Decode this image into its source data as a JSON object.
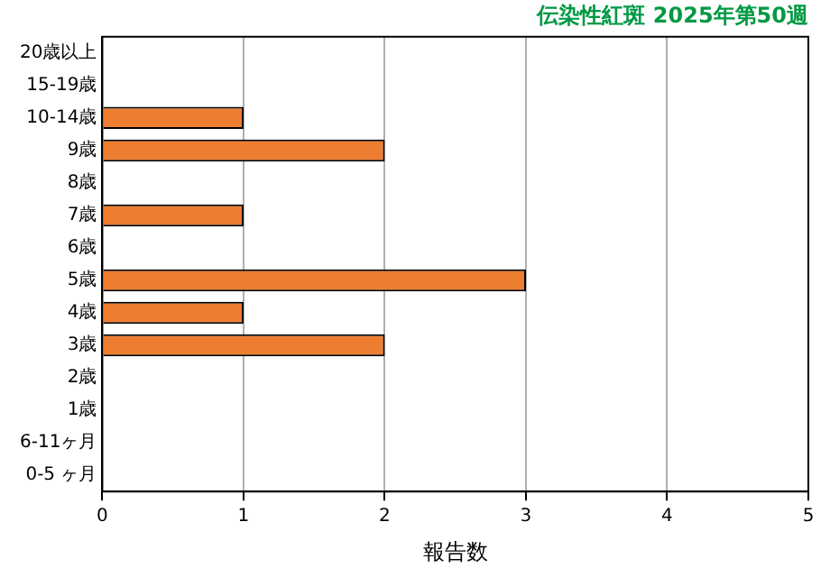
{
  "chart_data": {
    "type": "bar",
    "orientation": "horizontal",
    "title": "伝染性紅斑 2025年第50週",
    "xlabel": "報告数",
    "categories": [
      "20歳以上",
      "15-19歳",
      "10-14歳",
      "9歳",
      "8歳",
      "7歳",
      "6歳",
      "5歳",
      "4歳",
      "3歳",
      "2歳",
      "1歳",
      "6-11ヶ月",
      "0-5 ヶ月"
    ],
    "values": [
      0,
      0,
      1,
      2,
      0,
      1,
      0,
      3,
      1,
      2,
      0,
      0,
      0,
      0
    ],
    "color": "#ed7d31",
    "xlim": [
      0,
      5
    ],
    "xticks": [
      0,
      1,
      2,
      3,
      4,
      5
    ],
    "grid": "x",
    "legend": false
  }
}
